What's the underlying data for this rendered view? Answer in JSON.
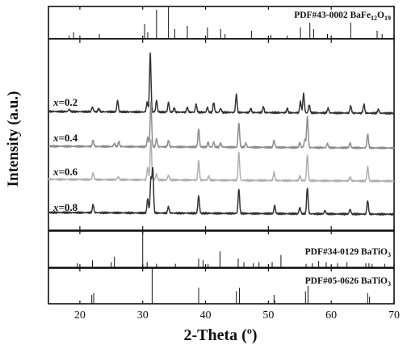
{
  "chart_data": {
    "type": "line",
    "xlabel": "2-Theta (°)",
    "ylabel": "Intensity (a.u.)",
    "xlim": [
      15,
      70
    ],
    "xticks": [
      20,
      30,
      40,
      50,
      60,
      70
    ],
    "grid": false,
    "reference_patterns": [
      {
        "name": "PDF#43-0002 BaFe12O19",
        "label_main": "PDF#43-0002 BaFe",
        "label_sub1": "12",
        "label_mid": "O",
        "label_sub2": "19",
        "peaks": [
          [
            18.3,
            0.1
          ],
          [
            19.0,
            0.2
          ],
          [
            23.1,
            0.15
          ],
          [
            30.3,
            0.45
          ],
          [
            30.8,
            0.2
          ],
          [
            32.2,
            0.9
          ],
          [
            34.1,
            1.0
          ],
          [
            35.1,
            0.3
          ],
          [
            37.1,
            0.4
          ],
          [
            40.3,
            0.35
          ],
          [
            42.4,
            0.3
          ],
          [
            43.1,
            0.15
          ],
          [
            47.3,
            0.25
          ],
          [
            50.4,
            0.12
          ],
          [
            53.0,
            0.1
          ],
          [
            55.1,
            0.35
          ],
          [
            56.6,
            0.5
          ],
          [
            57.2,
            0.3
          ],
          [
            59.4,
            0.15
          ],
          [
            63.1,
            0.5
          ],
          [
            67.3,
            0.25
          ],
          [
            68.1,
            0.15
          ]
        ]
      },
      {
        "name": "PDF#34-0129 BaTiO3",
        "label_main": "PDF#34-0129 BaTiO",
        "label_sub": "3",
        "peaks": [
          [
            19.6,
            0.12
          ],
          [
            22.0,
            0.2
          ],
          [
            25.0,
            0.15
          ],
          [
            25.5,
            0.3
          ],
          [
            30.0,
            1.0
          ],
          [
            30.7,
            0.15
          ],
          [
            32.2,
            0.1
          ],
          [
            35.2,
            0.1
          ],
          [
            38.9,
            0.25
          ],
          [
            39.6,
            0.2
          ],
          [
            40.4,
            0.1
          ],
          [
            42.3,
            0.45
          ],
          [
            45.2,
            0.25
          ],
          [
            46.1,
            0.15
          ],
          [
            47.6,
            0.12
          ],
          [
            48.5,
            0.15
          ],
          [
            50.6,
            0.15
          ],
          [
            52.0,
            0.35
          ],
          [
            56.0,
            0.1
          ],
          [
            57.0,
            0.12
          ],
          [
            58.0,
            0.18
          ],
          [
            59.2,
            0.15
          ],
          [
            61.0,
            0.12
          ],
          [
            62.5,
            0.15
          ],
          [
            65.5,
            0.12
          ],
          [
            66.0,
            0.12
          ],
          [
            66.5,
            0.1
          ],
          [
            68.5,
            0.1
          ]
        ]
      },
      {
        "name": "PDF#05-0626 BaTiO3",
        "label_main": "PDF#05-0626 BaTiO",
        "label_sub": "3",
        "peaks": [
          [
            21.9,
            0.25
          ],
          [
            22.2,
            0.3
          ],
          [
            31.5,
            1.0
          ],
          [
            38.9,
            0.45
          ],
          [
            44.9,
            0.35
          ],
          [
            45.4,
            0.45
          ],
          [
            50.9,
            0.25
          ],
          [
            51.0,
            0.1
          ],
          [
            55.9,
            0.35
          ],
          [
            56.3,
            0.5
          ],
          [
            65.8,
            0.3
          ],
          [
            66.1,
            0.2
          ]
        ]
      }
    ],
    "series": [
      {
        "label_prefix": "x",
        "label_value": "=0.2",
        "color": "#333333",
        "peaks": [
          [
            18.3,
            3
          ],
          [
            22.0,
            6
          ],
          [
            23.0,
            4
          ],
          [
            26.0,
            14
          ],
          [
            30.7,
            12
          ],
          [
            31.2,
            72
          ],
          [
            32.2,
            14
          ],
          [
            34.1,
            12
          ],
          [
            35.0,
            5
          ],
          [
            37.1,
            6
          ],
          [
            38.5,
            10
          ],
          [
            40.3,
            6
          ],
          [
            41.3,
            12
          ],
          [
            42.4,
            5
          ],
          [
            44.9,
            22
          ],
          [
            47.2,
            5
          ],
          [
            49.2,
            7
          ],
          [
            53.0,
            5
          ],
          [
            55.1,
            14
          ],
          [
            55.6,
            24
          ],
          [
            56.5,
            10
          ],
          [
            59.5,
            6
          ],
          [
            63.1,
            9
          ],
          [
            65.2,
            11
          ],
          [
            67.5,
            5
          ]
        ]
      },
      {
        "label_prefix": "x",
        "label_value": "=0.4",
        "color": "#8c8c8c",
        "peaks": [
          [
            22.1,
            8
          ],
          [
            25.5,
            4
          ],
          [
            26.2,
            6
          ],
          [
            30.8,
            12
          ],
          [
            31.3,
            55
          ],
          [
            32.2,
            10
          ],
          [
            34.1,
            8
          ],
          [
            38.9,
            22
          ],
          [
            40.4,
            6
          ],
          [
            41.3,
            6
          ],
          [
            42.4,
            5
          ],
          [
            45.3,
            30
          ],
          [
            46.4,
            5
          ],
          [
            50.9,
            9
          ],
          [
            55.0,
            6
          ],
          [
            55.8,
            10
          ],
          [
            56.2,
            38
          ],
          [
            59.4,
            5
          ],
          [
            63.0,
            6
          ],
          [
            65.8,
            17
          ]
        ]
      },
      {
        "label_prefix": "x",
        "label_value": "=0.6",
        "color": "#b0b0b0",
        "peaks": [
          [
            22.1,
            8
          ],
          [
            26.1,
            4
          ],
          [
            30.8,
            16
          ],
          [
            31.3,
            50
          ],
          [
            32.2,
            8
          ],
          [
            34.1,
            6
          ],
          [
            38.9,
            24
          ],
          [
            40.5,
            5
          ],
          [
            45.3,
            34
          ],
          [
            50.9,
            10
          ],
          [
            55.0,
            6
          ],
          [
            56.2,
            32
          ],
          [
            63.0,
            5
          ],
          [
            65.8,
            18
          ]
        ]
      },
      {
        "label_prefix": "x",
        "label_value": "=0.8",
        "color": "#333333",
        "peaks": [
          [
            22.1,
            10
          ],
          [
            30.8,
            18
          ],
          [
            31.3,
            42
          ],
          [
            31.6,
            55
          ],
          [
            34.1,
            8
          ],
          [
            38.9,
            22
          ],
          [
            45.3,
            30
          ],
          [
            51.0,
            10
          ],
          [
            55.0,
            8
          ],
          [
            56.2,
            32
          ],
          [
            59.0,
            4
          ],
          [
            63.0,
            6
          ],
          [
            65.8,
            17
          ]
        ]
      }
    ]
  }
}
